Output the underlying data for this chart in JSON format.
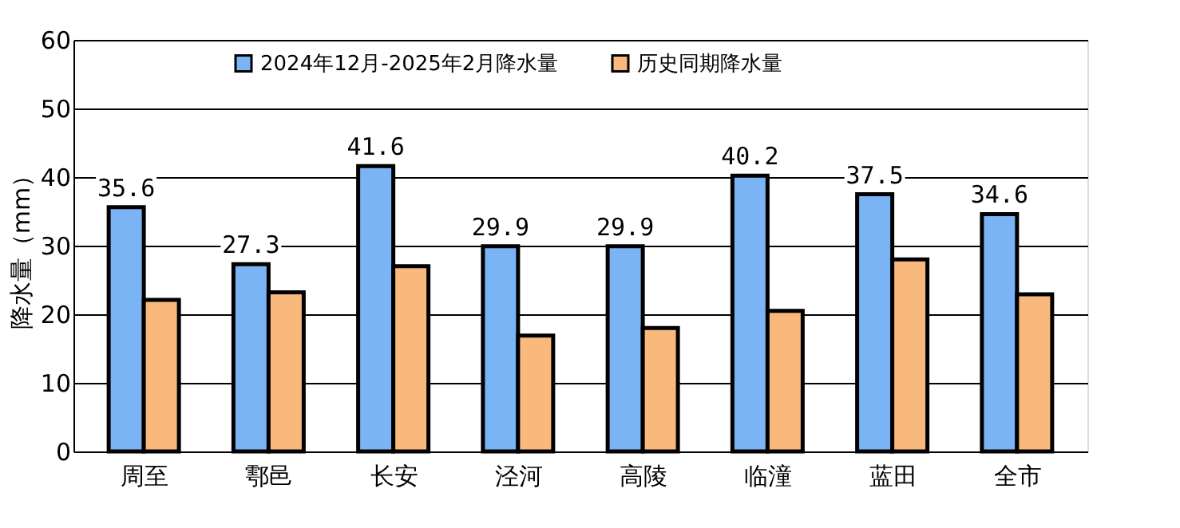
{
  "chart_data": {
    "type": "bar",
    "ylabel": "降水量（mm）",
    "categories": [
      "周至",
      "鄠邑",
      "长安",
      "泾河",
      "高陵",
      "临潼",
      "蓝田",
      "全市"
    ],
    "series": [
      {
        "name": "2024年12月-2025年2月降水量",
        "color": "#7ab4f5",
        "values": [
          35.6,
          27.3,
          41.6,
          29.9,
          29.9,
          40.2,
          37.5,
          34.6
        ],
        "value_labels": [
          "35.6",
          "27.3",
          "41.6",
          "29.9",
          "29.9",
          "40.2",
          "37.5",
          "34.6"
        ]
      },
      {
        "name": "历史同期降水量",
        "color": "#f9b97c",
        "values": [
          22.1,
          23.2,
          27.0,
          16.9,
          18.0,
          20.5,
          28.0,
          22.9
        ]
      }
    ],
    "ylim": [
      0,
      60
    ],
    "yticks": [
      0,
      10,
      20,
      30,
      40,
      50,
      60
    ],
    "grid": "y",
    "legend": "top"
  }
}
